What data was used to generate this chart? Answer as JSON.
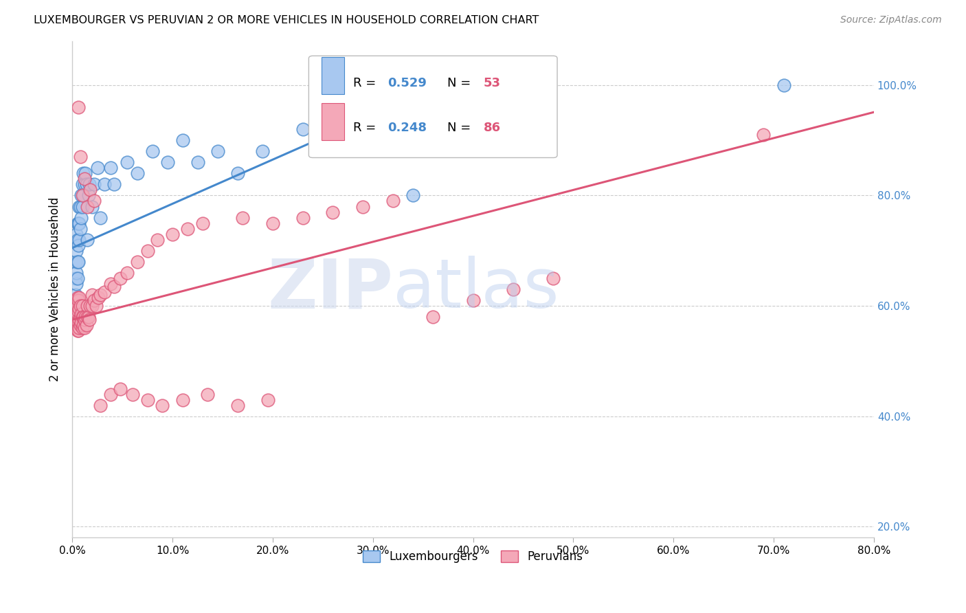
{
  "title": "LUXEMBOURGER VS PERUVIAN 2 OR MORE VEHICLES IN HOUSEHOLD CORRELATION CHART",
  "source": "Source: ZipAtlas.com",
  "ylabel": "2 or more Vehicles in Household",
  "blue_R": 0.529,
  "blue_N": 53,
  "pink_R": 0.248,
  "pink_N": 86,
  "blue_color": "#a8c8f0",
  "pink_color": "#f4a8b8",
  "blue_line_color": "#4488cc",
  "pink_line_color": "#dd5577",
  "legend_R_color": "#4488cc",
  "legend_N_color": "#dd5577",
  "xlim": [
    0.0,
    0.8
  ],
  "ylim": [
    0.18,
    1.08
  ],
  "x_ticks": [
    0.0,
    0.1,
    0.2,
    0.3,
    0.4,
    0.5,
    0.6,
    0.7,
    0.8
  ],
  "y_ticks": [
    0.2,
    0.4,
    0.6,
    0.8,
    1.0
  ],
  "blue_x": [
    0.003,
    0.003,
    0.003,
    0.004,
    0.004,
    0.004,
    0.004,
    0.005,
    0.005,
    0.005,
    0.005,
    0.006,
    0.006,
    0.006,
    0.007,
    0.007,
    0.007,
    0.008,
    0.008,
    0.009,
    0.009,
    0.01,
    0.01,
    0.011,
    0.011,
    0.012,
    0.013,
    0.014,
    0.015,
    0.016,
    0.017,
    0.02,
    0.022,
    0.025,
    0.028,
    0.032,
    0.038,
    0.042,
    0.055,
    0.065,
    0.08,
    0.095,
    0.11,
    0.125,
    0.145,
    0.165,
    0.19,
    0.23,
    0.28,
    0.31,
    0.35,
    0.71,
    0.34
  ],
  "blue_y": [
    0.62,
    0.65,
    0.68,
    0.64,
    0.66,
    0.7,
    0.73,
    0.65,
    0.68,
    0.72,
    0.75,
    0.68,
    0.71,
    0.75,
    0.72,
    0.75,
    0.78,
    0.74,
    0.78,
    0.76,
    0.8,
    0.78,
    0.82,
    0.8,
    0.84,
    0.82,
    0.84,
    0.82,
    0.72,
    0.8,
    0.82,
    0.78,
    0.82,
    0.85,
    0.76,
    0.82,
    0.85,
    0.82,
    0.86,
    0.84,
    0.88,
    0.86,
    0.9,
    0.86,
    0.88,
    0.84,
    0.88,
    0.92,
    0.94,
    0.96,
    0.98,
    1.0,
    0.8
  ],
  "pink_x": [
    0.002,
    0.002,
    0.003,
    0.003,
    0.003,
    0.004,
    0.004,
    0.004,
    0.004,
    0.005,
    0.005,
    0.005,
    0.005,
    0.005,
    0.006,
    0.006,
    0.006,
    0.006,
    0.007,
    0.007,
    0.007,
    0.007,
    0.008,
    0.008,
    0.008,
    0.009,
    0.009,
    0.01,
    0.01,
    0.01,
    0.011,
    0.011,
    0.012,
    0.012,
    0.013,
    0.014,
    0.015,
    0.015,
    0.016,
    0.017,
    0.018,
    0.02,
    0.02,
    0.022,
    0.024,
    0.026,
    0.028,
    0.032,
    0.038,
    0.042,
    0.048,
    0.055,
    0.065,
    0.075,
    0.085,
    0.1,
    0.115,
    0.13,
    0.17,
    0.2,
    0.23,
    0.26,
    0.29,
    0.32,
    0.36,
    0.4,
    0.44,
    0.48,
    0.69,
    0.006,
    0.008,
    0.01,
    0.012,
    0.015,
    0.018,
    0.022,
    0.028,
    0.038,
    0.048,
    0.06,
    0.075,
    0.09,
    0.11,
    0.135,
    0.165,
    0.195
  ],
  "pink_y": [
    0.56,
    0.6,
    0.57,
    0.59,
    0.61,
    0.56,
    0.575,
    0.59,
    0.61,
    0.555,
    0.57,
    0.585,
    0.6,
    0.615,
    0.555,
    0.57,
    0.59,
    0.61,
    0.56,
    0.575,
    0.595,
    0.615,
    0.565,
    0.58,
    0.6,
    0.57,
    0.585,
    0.56,
    0.58,
    0.6,
    0.565,
    0.58,
    0.56,
    0.575,
    0.58,
    0.565,
    0.58,
    0.6,
    0.58,
    0.575,
    0.6,
    0.6,
    0.62,
    0.61,
    0.6,
    0.615,
    0.62,
    0.625,
    0.64,
    0.635,
    0.65,
    0.66,
    0.68,
    0.7,
    0.72,
    0.73,
    0.74,
    0.75,
    0.76,
    0.75,
    0.76,
    0.77,
    0.78,
    0.79,
    0.58,
    0.61,
    0.63,
    0.65,
    0.91,
    0.96,
    0.87,
    0.8,
    0.83,
    0.78,
    0.81,
    0.79,
    0.42,
    0.44,
    0.45,
    0.44,
    0.43,
    0.42,
    0.43,
    0.44,
    0.42,
    0.43
  ],
  "blue_line_x": [
    0.0,
    0.38
  ],
  "pink_line_x": [
    0.0,
    0.8
  ],
  "blue_intercept": 0.705,
  "blue_slope": 0.8,
  "pink_intercept": 0.575,
  "pink_slope": 0.47
}
